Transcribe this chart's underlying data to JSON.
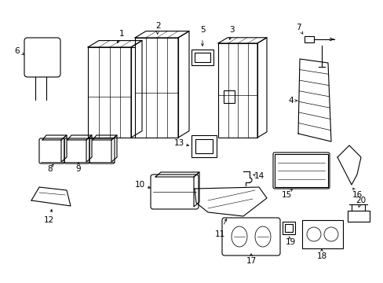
{
  "background_color": "#ffffff",
  "line_color": "#000000",
  "gray_color": "#888888",
  "fig_width": 4.89,
  "fig_height": 3.6,
  "dpi": 100,
  "lw": 0.8
}
